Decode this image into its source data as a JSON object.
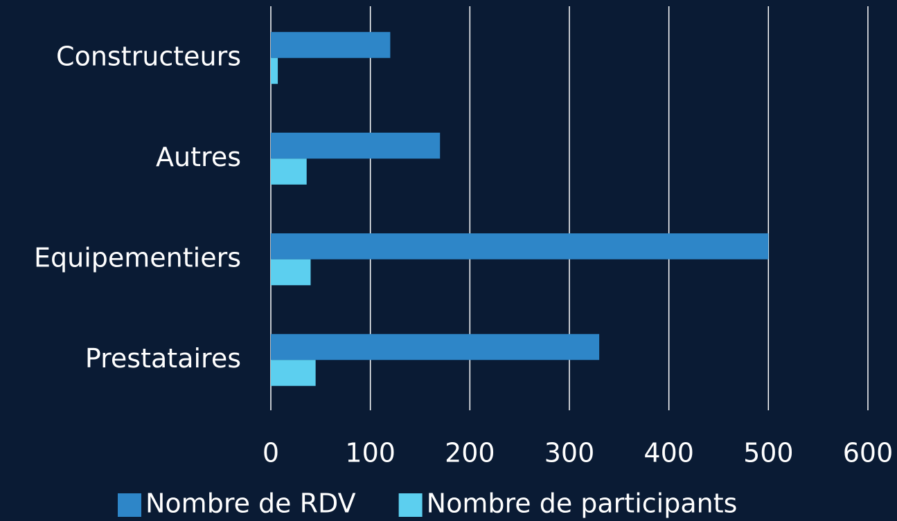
{
  "chart_data": {
    "type": "bar",
    "orientation": "horizontal",
    "categories": [
      "Constructeurs",
      "Autres",
      "Equipementiers",
      "Prestataires"
    ],
    "series": [
      {
        "name": "Nombre de RDV",
        "color": "#2e86c8",
        "values": [
          120,
          170,
          500,
          330
        ]
      },
      {
        "name": "Nombre de participants",
        "color": "#5ccfef",
        "values": [
          7,
          36,
          40,
          45
        ]
      }
    ],
    "xlim": [
      0,
      600
    ],
    "xticks": [
      0,
      100,
      200,
      300,
      400,
      500,
      600
    ],
    "grid": true,
    "legend": "bottom"
  }
}
